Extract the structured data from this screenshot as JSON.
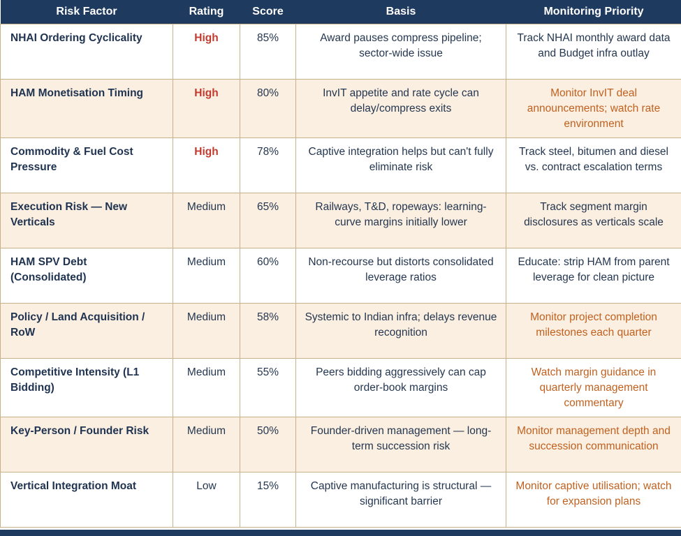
{
  "colors": {
    "header_bg": "#1f3a5f",
    "alt_row_bg": "#fbefe1",
    "border_tan": "#c8b189",
    "text_navy": "#253750",
    "rating_high_red": "#c33b2e",
    "monitoring_orange": "#c0611f"
  },
  "table": {
    "columns": {
      "factor": "Risk Factor",
      "rating": "Rating",
      "score": "Score",
      "basis": "Basis",
      "monitoring": "Monitoring Priority"
    },
    "rows": [
      {
        "factor": "NHAI Ordering Cyclicality",
        "rating": "High",
        "rating_class": "rating-high",
        "score": "85%",
        "basis": "Award pauses compress pipeline; sector-wide issue",
        "monitoring": "Track NHAI monthly award data and Budget infra outlay",
        "monitoring_class": "mon-navy"
      },
      {
        "factor": "HAM Monetisation Timing",
        "rating": "High",
        "rating_class": "rating-high",
        "score": "80%",
        "basis": "InvIT appetite and rate cycle can delay/compress exits",
        "monitoring": "Monitor InvIT deal announcements; watch rate environment",
        "monitoring_class": "mon-orange"
      },
      {
        "factor": "Commodity & Fuel Cost Pressure",
        "rating": "High",
        "rating_class": "rating-high",
        "score": "78%",
        "basis": "Captive integration helps but can't fully eliminate risk",
        "monitoring": "Track steel, bitumen and diesel vs. contract escalation terms",
        "monitoring_class": "mon-navy"
      },
      {
        "factor": "Execution Risk — New Verticals",
        "rating": "Medium",
        "rating_class": "rating-medium",
        "score": "65%",
        "basis": "Railways, T&D, ropeways: learning-curve margins initially lower",
        "monitoring": "Track segment margin disclosures as verticals scale",
        "monitoring_class": "mon-navy"
      },
      {
        "factor": "HAM SPV Debt (Consolidated)",
        "rating": "Medium",
        "rating_class": "rating-medium",
        "score": "60%",
        "basis": "Non-recourse but distorts consolidated leverage ratios",
        "monitoring": "Educate: strip HAM from parent leverage for clean picture",
        "monitoring_class": "mon-navy"
      },
      {
        "factor": "Policy / Land Acquisition / RoW",
        "rating": "Medium",
        "rating_class": "rating-medium",
        "score": "58%",
        "basis": "Systemic to Indian infra; delays revenue recognition",
        "monitoring": "Monitor project completion milestones each quarter",
        "monitoring_class": "mon-orange"
      },
      {
        "factor": "Competitive Intensity (L1 Bidding)",
        "rating": "Medium",
        "rating_class": "rating-medium",
        "score": "55%",
        "basis": "Peers bidding aggressively can cap order-book margins",
        "monitoring": "Watch margin guidance in quarterly management commentary",
        "monitoring_class": "mon-orange"
      },
      {
        "factor": "Key-Person / Founder Risk",
        "rating": "Medium",
        "rating_class": "rating-medium",
        "score": "50%",
        "basis": "Founder-driven management — long-term succession risk",
        "monitoring": "Monitor management depth and succession communication",
        "monitoring_class": "mon-orange"
      },
      {
        "factor": "Vertical Integration Moat",
        "rating": "Low",
        "rating_class": "rating-low",
        "score": "15%",
        "basis": "Captive manufacturing is structural — significant barrier",
        "monitoring": "Monitor captive utilisation; watch for expansion plans",
        "monitoring_class": "mon-orange"
      }
    ]
  }
}
